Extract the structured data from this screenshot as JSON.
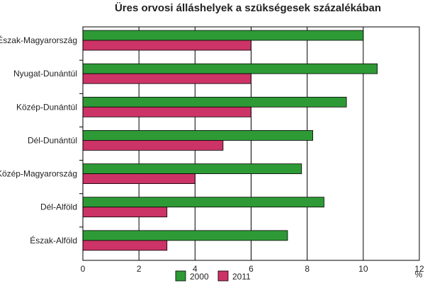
{
  "chart_data": {
    "type": "bar",
    "orientation": "horizontal",
    "title": "Üres orvosi álláshelyek a szükségesek százalékában",
    "xlabel": "",
    "unit_label": "%",
    "categories": [
      "Észak-Magyarország",
      "Nyugat-Dunántúl",
      "Közép-Dunántúl",
      "Dél-Dunántúl",
      "Közép-Magyarország",
      "Dél-Alföld",
      "Észak-Alföld"
    ],
    "series": [
      {
        "name": "2000",
        "color": "#2e9a36",
        "values": [
          10.0,
          10.5,
          9.4,
          8.2,
          7.8,
          8.6,
          7.3
        ]
      },
      {
        "name": "2011",
        "color": "#cc3366",
        "values": [
          6.0,
          6.0,
          6.0,
          5.0,
          4.0,
          3.0,
          3.0
        ]
      }
    ],
    "xlim": [
      0,
      12
    ],
    "ticks": [
      0,
      2,
      4,
      6,
      8,
      10,
      12
    ],
    "grid": true,
    "legend": "bottom-center"
  }
}
